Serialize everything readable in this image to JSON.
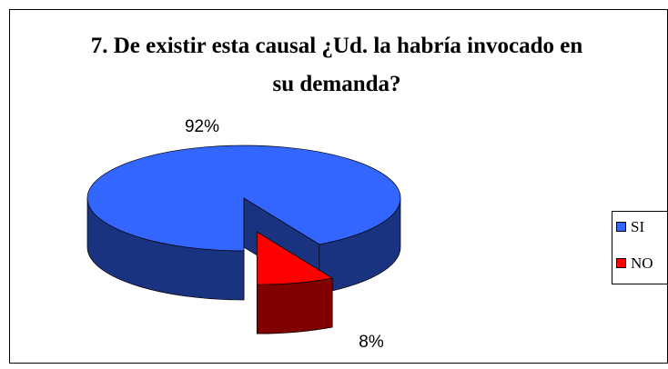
{
  "chart_data": {
    "type": "pie",
    "title": "7. De existir esta causal ¿Ud. la habría invocado en su demanda?",
    "categories": [
      "SI",
      "NO"
    ],
    "values": [
      92,
      8
    ],
    "value_labels": [
      "92%",
      "8%"
    ],
    "colors": [
      "#3366ff",
      "#ff0000"
    ],
    "legend": "right"
  }
}
